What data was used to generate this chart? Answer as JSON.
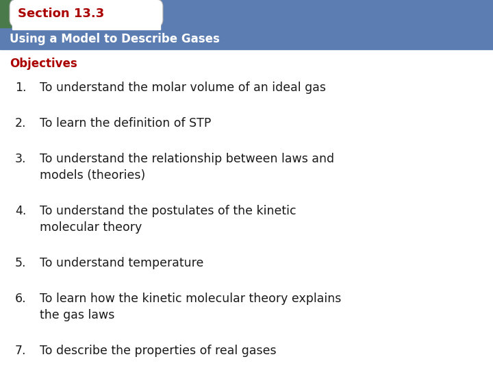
{
  "section_title": "Section 13.3",
  "subtitle": "Using a Model to Describe Gases",
  "objectives_label": "Objectives",
  "items": [
    [
      "To understand the molar volume of an ideal gas"
    ],
    [
      "To learn the definition of STP"
    ],
    [
      "To understand the relationship between laws and",
      "models (theories)"
    ],
    [
      "To understand the postulates of the kinetic",
      "molecular theory"
    ],
    [
      "To understand temperature"
    ],
    [
      "To learn how the kinetic molecular theory explains",
      "the gas laws"
    ],
    [
      "To describe the properties of real gases"
    ]
  ],
  "header_bg": "#5B7DB1",
  "section_tab_text_color": "#AA0000",
  "subtitle_text_color": "#FFFFFF",
  "objectives_color": "#AA0000",
  "item_color": "#1a1a1a",
  "background_color": "#FFFFFF",
  "green_bar_color": "#4A7A4A",
  "tab_fill": "#FFFFFF",
  "tab_border": "#AAAAAA"
}
